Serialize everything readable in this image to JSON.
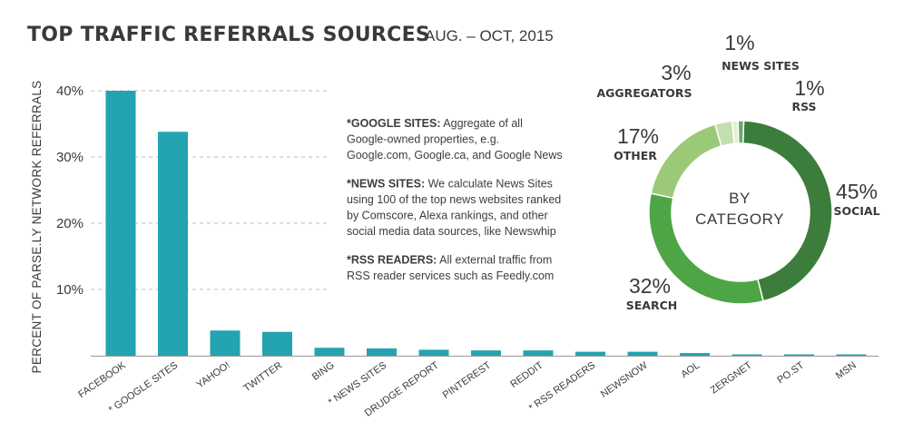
{
  "title": "TOP TRAFFIC REFERRALS SOURCES",
  "subtitle": "AUG. – OCT, 2015",
  "notes": [
    {
      "bold": "*GOOGLE SITES:",
      "lines": [
        " Aggregate of all",
        "Google-owned properties, e.g.",
        "Google.com, Google.ca, and Google News"
      ]
    },
    {
      "bold": "*NEWS SITES:",
      "lines": [
        " We calculate News Sites",
        "using 100 of the top news websites ranked",
        "by Comscore, Alexa rankings, and other",
        "social media data sources, like Newswhip"
      ]
    },
    {
      "bold": "*RSS READERS:",
      "lines": [
        " All external traffic from",
        "RSS reader services such as Feedly.com"
      ]
    }
  ],
  "chart_data": [
    {
      "type": "bar",
      "categories": [
        "FACEBOOK",
        "* GOOGLE SITES",
        "YAHOO!",
        "TWITTER",
        "BING",
        "* NEWS SITES",
        "DRUDGE REPORT",
        "PINTEREST",
        "REDDIT",
        "* RSS READERS",
        "NEWSNOW",
        "AOL",
        "ZERGNET",
        "PO.ST",
        "MSN"
      ],
      "values": [
        40,
        33.8,
        3.8,
        3.6,
        1.2,
        1.1,
        0.9,
        0.8,
        0.8,
        0.6,
        0.6,
        0.4,
        0.2,
        0.2,
        0.2
      ],
      "yticks": [
        10,
        20,
        30,
        40
      ],
      "ytick_labels": [
        "10%",
        "20%",
        "30%",
        "40%"
      ],
      "ylim": [
        0,
        40
      ],
      "ylabel": "PERCENT OF PARSE.LY NETWORK REFERRALS",
      "xlabel": "",
      "color": "#24a3b0"
    },
    {
      "type": "pie",
      "donut": true,
      "center_label": [
        "BY",
        "CATEGORY"
      ],
      "slices": [
        {
          "name": "SOCIAL",
          "value": 45,
          "label": "45%",
          "color": "#3d7d3b"
        },
        {
          "name": "SEARCH",
          "value": 32,
          "label": "32%",
          "color": "#4ea546"
        },
        {
          "name": "OTHER",
          "value": 17,
          "label": "17%",
          "color": "#9cc978"
        },
        {
          "name": "AGGREGATORS",
          "value": 3,
          "label": "3%",
          "color": "#c4dfae"
        },
        {
          "name": "NEWS SITES",
          "value": 1,
          "label": "1%",
          "color": "#e3efd6"
        },
        {
          "name": "RSS",
          "value": 1,
          "label": "1%",
          "color": "#6aa86a"
        }
      ]
    }
  ]
}
